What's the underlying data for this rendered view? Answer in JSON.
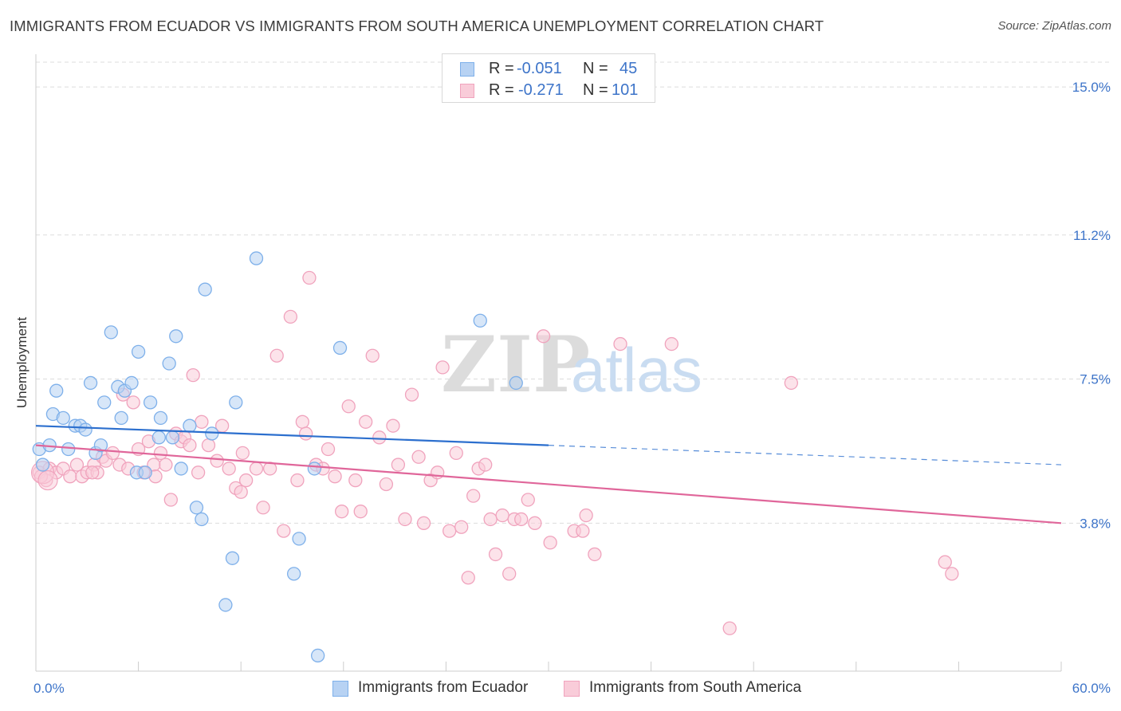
{
  "chart_data": {
    "type": "scatter",
    "title": "IMMIGRANTS FROM ECUADOR VS IMMIGRANTS FROM SOUTH AMERICA UNEMPLOYMENT CORRELATION CHART",
    "source": "Source: ZipAtlas.com",
    "ylabel": "Unemployment",
    "xlim": [
      0,
      60
    ],
    "ylim": [
      0,
      15.8
    ],
    "x_tick_labels": [
      "0.0%",
      "60.0%"
    ],
    "y_ticks": [
      3.8,
      7.5,
      11.2,
      15.0
    ],
    "y_tick_labels": [
      "3.8%",
      "7.5%",
      "11.2%",
      "15.0%"
    ],
    "watermark": {
      "zip": "ZIP",
      "atlas": "atlas"
    },
    "legend": {
      "r_label": "R =",
      "n_label": "N =",
      "rows": [
        {
          "r": "-0.051",
          "n": "45"
        },
        {
          "r": "-0.271",
          "n": "101"
        }
      ]
    },
    "series": [
      {
        "name": "Immigrants from Ecuador",
        "color": "#7eb0ea",
        "fill": "#b7d2f3",
        "line_color": "#2c6fce",
        "trend": {
          "x0": 0,
          "y0": 6.3,
          "x1": 30,
          "y1": 5.8,
          "dash_to_x": 60,
          "dash_to_y": 5.3
        },
        "points": [
          [
            0.2,
            5.7
          ],
          [
            0.4,
            5.3
          ],
          [
            0.8,
            5.8
          ],
          [
            1.0,
            6.6
          ],
          [
            1.2,
            7.2
          ],
          [
            1.6,
            6.5
          ],
          [
            1.9,
            5.7
          ],
          [
            2.3,
            6.3
          ],
          [
            2.6,
            6.3
          ],
          [
            2.9,
            6.2
          ],
          [
            3.2,
            7.4
          ],
          [
            3.5,
            5.6
          ],
          [
            3.8,
            5.8
          ],
          [
            4.0,
            6.9
          ],
          [
            4.4,
            8.7
          ],
          [
            4.8,
            7.3
          ],
          [
            5.0,
            6.5
          ],
          [
            5.2,
            7.2
          ],
          [
            5.6,
            7.4
          ],
          [
            5.9,
            5.1
          ],
          [
            6.0,
            8.2
          ],
          [
            6.4,
            5.1
          ],
          [
            6.7,
            6.9
          ],
          [
            7.2,
            6.0
          ],
          [
            7.3,
            6.5
          ],
          [
            7.8,
            7.9
          ],
          [
            8.0,
            6.0
          ],
          [
            8.2,
            8.6
          ],
          [
            8.5,
            5.2
          ],
          [
            9.0,
            6.3
          ],
          [
            9.4,
            4.2
          ],
          [
            9.7,
            3.9
          ],
          [
            9.9,
            9.8
          ],
          [
            10.3,
            6.1
          ],
          [
            11.1,
            1.7
          ],
          [
            11.5,
            2.9
          ],
          [
            11.7,
            6.9
          ],
          [
            12.9,
            10.6
          ],
          [
            15.1,
            2.5
          ],
          [
            15.4,
            3.4
          ],
          [
            16.3,
            5.2
          ],
          [
            16.5,
            0.4
          ],
          [
            17.8,
            8.3
          ],
          [
            26.0,
            9.0
          ],
          [
            28.1,
            7.4
          ]
        ]
      },
      {
        "name": "Immigrants from South America",
        "color": "#f0a3bd",
        "fill": "#f9ccd9",
        "line_color": "#e0669a",
        "trend": {
          "x0": 0,
          "y0": 5.8,
          "x1": 60,
          "y1": 3.8
        },
        "points": [
          [
            0.2,
            5.1
          ],
          [
            0.6,
            4.9
          ],
          [
            0.8,
            5.2
          ],
          [
            1.2,
            5.1
          ],
          [
            1.6,
            5.2
          ],
          [
            2.0,
            5.0
          ],
          [
            2.4,
            5.3
          ],
          [
            2.7,
            5.0
          ],
          [
            3.0,
            5.1
          ],
          [
            3.4,
            5.3
          ],
          [
            3.6,
            5.1
          ],
          [
            3.9,
            5.5
          ],
          [
            4.1,
            5.4
          ],
          [
            4.5,
            5.6
          ],
          [
            4.9,
            5.3
          ],
          [
            5.1,
            7.1
          ],
          [
            5.4,
            5.2
          ],
          [
            5.7,
            6.9
          ],
          [
            6.0,
            5.7
          ],
          [
            6.3,
            5.1
          ],
          [
            6.6,
            5.9
          ],
          [
            6.9,
            5.3
          ],
          [
            7.3,
            5.6
          ],
          [
            7.6,
            5.3
          ],
          [
            7.9,
            4.4
          ],
          [
            8.2,
            6.1
          ],
          [
            8.5,
            5.9
          ],
          [
            8.7,
            6.0
          ],
          [
            9.0,
            5.8
          ],
          [
            9.2,
            7.6
          ],
          [
            9.5,
            5.1
          ],
          [
            9.7,
            6.4
          ],
          [
            10.1,
            5.8
          ],
          [
            10.6,
            5.4
          ],
          [
            10.9,
            6.3
          ],
          [
            11.3,
            5.2
          ],
          [
            11.7,
            4.7
          ],
          [
            12.1,
            5.6
          ],
          [
            12.3,
            4.9
          ],
          [
            12.9,
            5.2
          ],
          [
            13.3,
            4.2
          ],
          [
            13.7,
            5.2
          ],
          [
            14.1,
            8.1
          ],
          [
            14.5,
            3.6
          ],
          [
            14.9,
            9.1
          ],
          [
            15.3,
            4.9
          ],
          [
            15.6,
            6.4
          ],
          [
            15.8,
            6.1
          ],
          [
            16.0,
            10.1
          ],
          [
            16.4,
            5.3
          ],
          [
            16.8,
            5.2
          ],
          [
            17.1,
            5.7
          ],
          [
            17.5,
            5.0
          ],
          [
            17.9,
            4.1
          ],
          [
            18.3,
            6.8
          ],
          [
            18.7,
            4.9
          ],
          [
            19.0,
            4.1
          ],
          [
            19.3,
            6.4
          ],
          [
            19.7,
            8.1
          ],
          [
            20.1,
            6.0
          ],
          [
            20.5,
            4.8
          ],
          [
            20.9,
            6.3
          ],
          [
            21.2,
            5.3
          ],
          [
            21.6,
            3.9
          ],
          [
            22.0,
            7.1
          ],
          [
            22.4,
            5.5
          ],
          [
            22.7,
            3.8
          ],
          [
            23.1,
            4.9
          ],
          [
            23.5,
            5.1
          ],
          [
            23.8,
            7.8
          ],
          [
            24.2,
            3.6
          ],
          [
            24.6,
            5.6
          ],
          [
            24.9,
            3.7
          ],
          [
            25.3,
            2.4
          ],
          [
            25.6,
            4.5
          ],
          [
            25.9,
            5.2
          ],
          [
            26.3,
            5.3
          ],
          [
            26.6,
            3.9
          ],
          [
            26.9,
            3.0
          ],
          [
            27.3,
            4.0
          ],
          [
            27.7,
            2.5
          ],
          [
            28.0,
            3.9
          ],
          [
            28.4,
            3.9
          ],
          [
            28.8,
            4.4
          ],
          [
            29.2,
            3.8
          ],
          [
            29.7,
            8.6
          ],
          [
            30.1,
            3.3
          ],
          [
            31.5,
            3.6
          ],
          [
            32.0,
            3.6
          ],
          [
            32.2,
            4.0
          ],
          [
            32.7,
            3.0
          ],
          [
            34.2,
            8.4
          ],
          [
            37.2,
            8.4
          ],
          [
            40.6,
            1.1
          ],
          [
            44.2,
            7.4
          ],
          [
            53.2,
            2.8
          ],
          [
            53.6,
            2.5
          ],
          [
            0.3,
            5.0
          ],
          [
            3.3,
            5.1
          ],
          [
            7.0,
            5.0
          ],
          [
            12.0,
            4.6
          ]
        ]
      }
    ]
  }
}
